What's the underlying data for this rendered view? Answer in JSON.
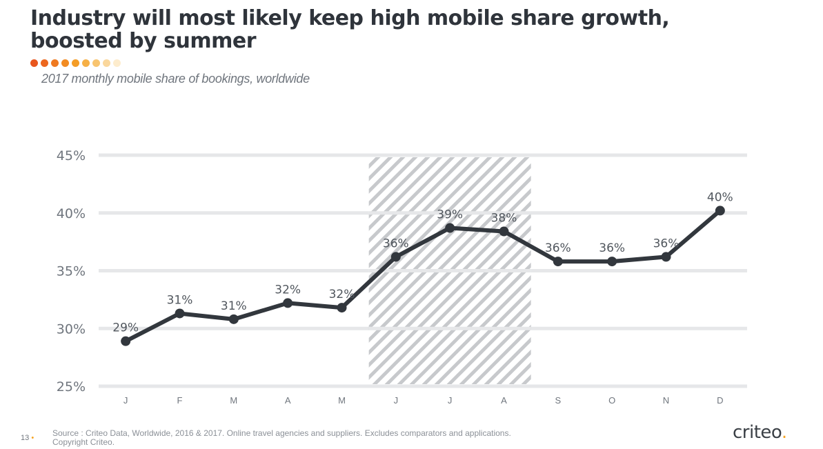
{
  "title_line1": "Industry will most likely keep high mobile share growth,",
  "title_line2": "boosted by summer",
  "subtitle": "2017 monthly mobile share of bookings, worldwide",
  "decor_dot_colors": [
    "#e8561e",
    "#ec671f",
    "#ef7a21",
    "#f28c23",
    "#f49d27",
    "#f6b046",
    "#f8c46f",
    "#fad79c",
    "#fdeccd"
  ],
  "footer": {
    "page_number": "13",
    "page_dot": "•",
    "source_line1": "Source : Criteo Data, Worldwide, 2016 & 2017. Online travel agencies and suppliers. Excludes comparators and applications.",
    "source_line2": "Copyright Criteo."
  },
  "logo": {
    "text": "criteo",
    "accent": "."
  },
  "colors": {
    "line": "#32373d",
    "grid": "#e6e7e9",
    "text": "#2f343b",
    "axis_text": "#6f757d",
    "hatch": "#c4c6c9",
    "brand": "#f6a423"
  },
  "chart_data": {
    "type": "line",
    "categories": [
      "J",
      "F",
      "M",
      "A",
      "M",
      "J",
      "J",
      "A",
      "S",
      "O",
      "N",
      "D"
    ],
    "values": [
      28.9,
      31.3,
      30.8,
      32.2,
      31.8,
      36.2,
      38.7,
      38.4,
      35.8,
      35.8,
      36.2,
      40.2
    ],
    "data_labels": [
      "29%",
      "31%",
      "31%",
      "32%",
      "32%",
      "36%",
      "39%",
      "38%",
      "36%",
      "36%",
      "36%",
      "40%"
    ],
    "y_ticks": [
      25,
      30,
      35,
      40,
      45
    ],
    "y_tick_labels": [
      "25%",
      "30%",
      "35%",
      "40%",
      "45%"
    ],
    "ylim": [
      25,
      45
    ],
    "grid": true,
    "highlight_region": {
      "from": "J",
      "to": "A",
      "start_index": 5,
      "end_index": 7,
      "pattern": "hatched"
    }
  }
}
